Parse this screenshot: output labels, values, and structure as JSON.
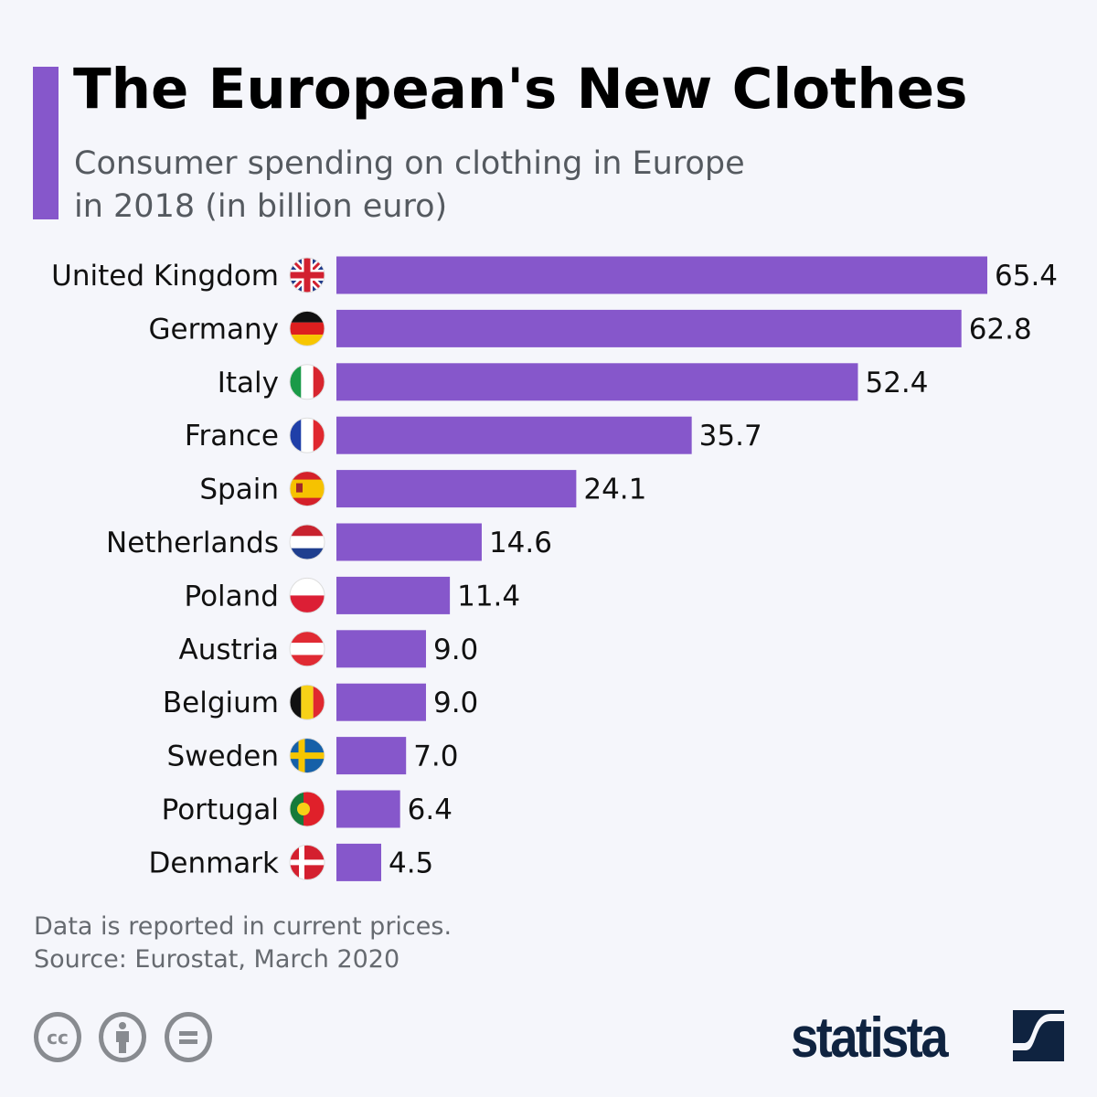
{
  "title": "The European's New Clothes",
  "subtitle_line1": "Consumer spending on clothing in Europe",
  "subtitle_line2": "in 2018 (in billion euro)",
  "footnote": "Data is reported in current prices.",
  "source": "Source: Eurostat, March 2020",
  "brand": "statista",
  "license_icons": [
    "cc-icon",
    "attribution-icon",
    "no-derivatives-icon"
  ],
  "colors": {
    "bar": "#8657cb",
    "accent": "#8657cb",
    "brand": "#0f2340"
  },
  "chart_data": {
    "type": "bar",
    "orientation": "horizontal",
    "categories": [
      "United Kingdom",
      "Germany",
      "Italy",
      "France",
      "Spain",
      "Netherlands",
      "Poland",
      "Austria",
      "Belgium",
      "Sweden",
      "Portugal",
      "Denmark"
    ],
    "values": [
      65.4,
      62.8,
      52.4,
      35.7,
      24.1,
      14.6,
      11.4,
      9.0,
      9.0,
      7.0,
      6.4,
      4.5
    ],
    "value_labels": [
      "65.4",
      "62.8",
      "52.4",
      "35.7",
      "24.1",
      "14.6",
      "11.4",
      "9.0",
      "9.0",
      "7.0",
      "6.4",
      "4.5"
    ],
    "flags": [
      "uk",
      "de",
      "it",
      "fr",
      "es",
      "nl",
      "pl",
      "at",
      "be",
      "se",
      "pt",
      "dk"
    ],
    "xlim": [
      0,
      65.4
    ],
    "grid": false
  }
}
